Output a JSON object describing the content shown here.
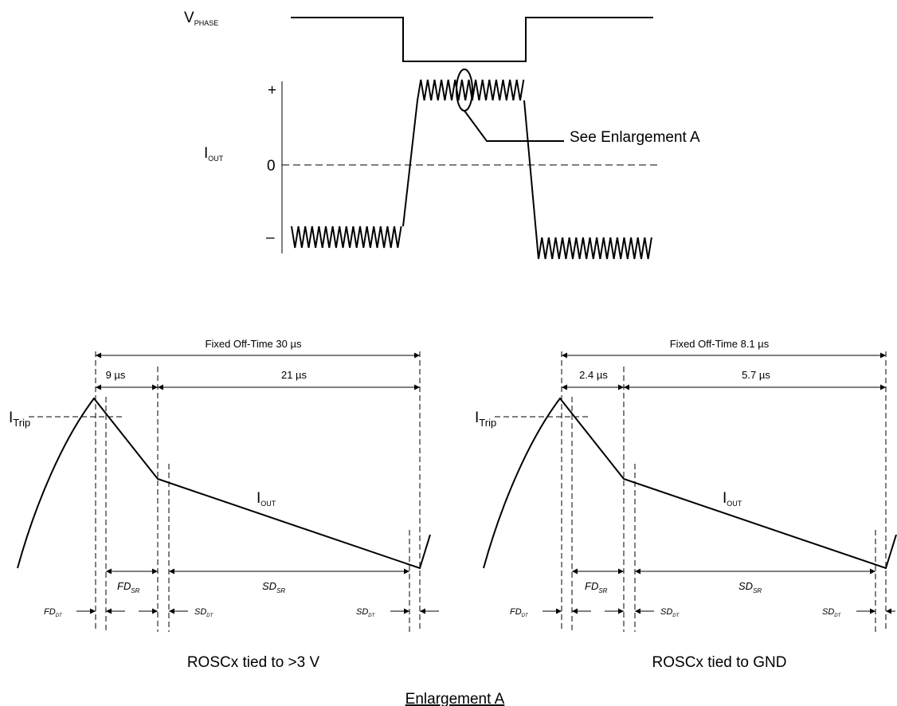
{
  "top": {
    "vphase_label": {
      "main": "V",
      "sub": "PHASE"
    },
    "iout_label": {
      "main": "I",
      "sub": "OUT"
    },
    "plus_label": "+",
    "zero_label": "0",
    "minus_label": "–",
    "callout": "See Enlargement A"
  },
  "panels": [
    {
      "total_label": "Fixed Off-Time 30 µs",
      "fast_label": "9 µs",
      "slow_label": "21 µs",
      "itrip": {
        "main": "I",
        "sub": "Trip"
      },
      "iout": {
        "main": "I",
        "sub": "OUT"
      },
      "fd_sr": {
        "main": "FD",
        "sub": "SR"
      },
      "sd_sr": {
        "main": "SD",
        "sub": "SR"
      },
      "fd_dt": {
        "main": "FD",
        "sub": "DT"
      },
      "sd_dt1": {
        "main": "SD",
        "sub": "DT"
      },
      "sd_dt2": {
        "main": "SD",
        "sub": "DT"
      },
      "caption": "ROSCx tied to >3 V"
    },
    {
      "total_label": "Fixed Off-Time 8.1 µs",
      "fast_label": "2.4 µs",
      "slow_label": "5.7 µs",
      "itrip": {
        "main": "I",
        "sub": "Trip"
      },
      "iout": {
        "main": "I",
        "sub": "OUT"
      },
      "fd_sr": {
        "main": "FD",
        "sub": "SR"
      },
      "sd_sr": {
        "main": "SD",
        "sub": "SR"
      },
      "fd_dt": {
        "main": "FD",
        "sub": "DT"
      },
      "sd_dt1": {
        "main": "SD",
        "sub": "DT"
      },
      "sd_dt2": {
        "main": "SD",
        "sub": "DT"
      },
      "caption": "ROSCx tied to GND"
    }
  ],
  "footer": {
    "title": "Enlargement A"
  }
}
